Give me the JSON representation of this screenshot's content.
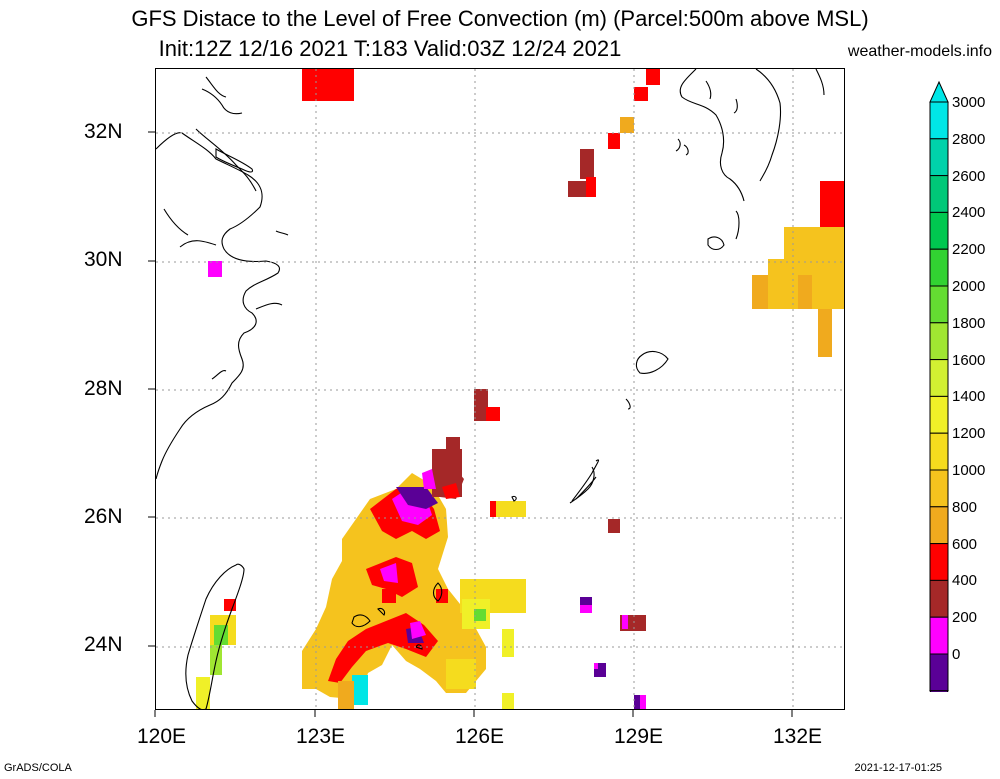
{
  "title_line1": "GFS Distace to the Level of Free Convection (m) (Parcel:500m above MSL)",
  "title_line2": "Init:12Z 12/16 2021 T:183 Valid:03Z 12/24 2021",
  "credit": "weather-models.info",
  "footer_left": "GrADS/COLA",
  "footer_right": "2021-12-17-01:25",
  "map": {
    "lon_range": [
      120,
      133
    ],
    "lat_range": [
      23,
      33
    ],
    "lon_ticks": [
      "120E",
      "123E",
      "126E",
      "129E",
      "132E"
    ],
    "lat_ticks": [
      "32N",
      "30N",
      "28N",
      "26N",
      "24N"
    ],
    "grid": true
  },
  "colorbar": {
    "labels": [
      "3000",
      "2800",
      "2600",
      "2400",
      "2200",
      "2000",
      "1800",
      "1600",
      "1400",
      "1200",
      "1000",
      "800",
      "600",
      "400",
      "200",
      "0"
    ],
    "colors": [
      "#00e6e6",
      "#00d2aa",
      "#00c878",
      "#00c850",
      "#32d232",
      "#64dc32",
      "#a0e632",
      "#d2f032",
      "#f0f028",
      "#f5dc1e",
      "#f5c31e",
      "#f0aa1e",
      "#ff0000",
      "#a52828",
      "#ff00ff",
      "#5a0096"
    ]
  }
}
